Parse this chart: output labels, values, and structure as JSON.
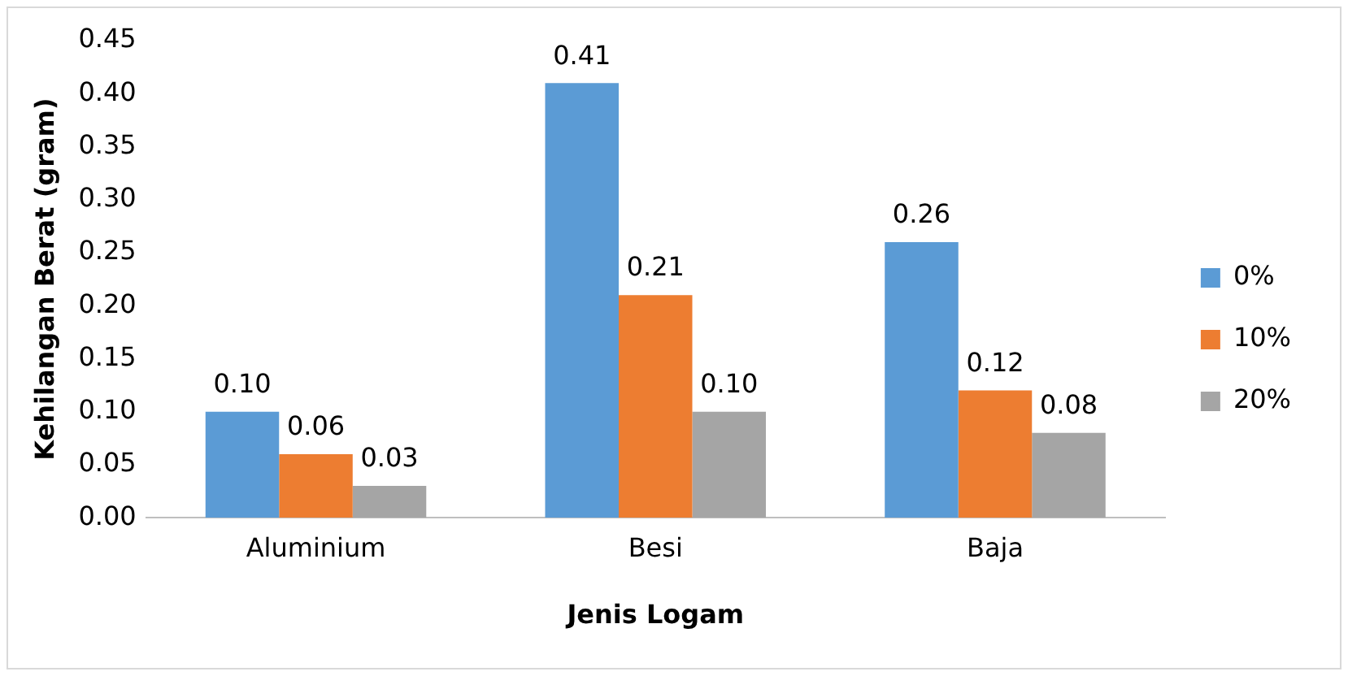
{
  "chart_data": {
    "type": "bar",
    "xlabel": "Jenis Logam",
    "ylabel": "Kehilangan Berat (gram)",
    "categories": [
      "Aluminium",
      "Besi",
      "Baja"
    ],
    "series": [
      {
        "name": "0%",
        "color": "#5b9bd5",
        "values": [
          0.1,
          0.41,
          0.26
        ],
        "value_labels": [
          "0.10",
          "0.41",
          "0.26"
        ]
      },
      {
        "name": "10%",
        "color": "#ed7d31",
        "values": [
          0.06,
          0.21,
          0.12
        ],
        "value_labels": [
          "0.06",
          "0.21",
          "0.12"
        ]
      },
      {
        "name": "20%",
        "color": "#a5a5a5",
        "values": [
          0.03,
          0.1,
          0.08
        ],
        "value_labels": [
          "0.03",
          "0.10",
          "0.08"
        ]
      }
    ],
    "ylim": [
      0,
      0.45
    ],
    "yticks": [
      {
        "value": 0,
        "label": "0.00"
      },
      {
        "value": 0.05,
        "label": "0.05"
      },
      {
        "value": 0.1,
        "label": "0.10"
      },
      {
        "value": 0.15,
        "label": "0.15"
      },
      {
        "value": 0.2,
        "label": "0.20"
      },
      {
        "value": 0.25,
        "label": "0.25"
      },
      {
        "value": 0.3,
        "label": "0.30"
      },
      {
        "value": 0.35,
        "label": "0.35"
      },
      {
        "value": 0.4,
        "label": "0.40"
      },
      {
        "value": 0.45,
        "label": "0.45"
      }
    ],
    "grid": false,
    "legend": "right"
  }
}
